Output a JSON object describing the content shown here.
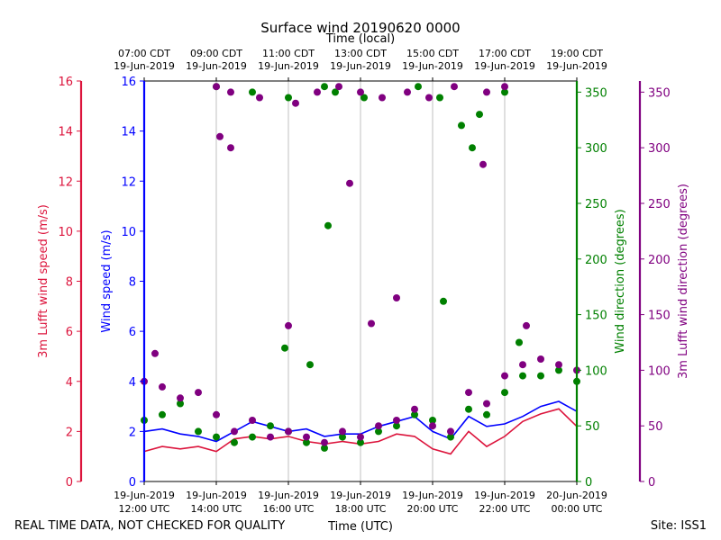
{
  "chart_data": {
    "type": "scatter",
    "title": "Surface wind 20190620 0000",
    "top_axis_label": "Time (local)",
    "xlabel": "Time (UTC)",
    "footer_left": "REAL TIME DATA, NOT CHECKED FOR QUALITY",
    "footer_right": "Site: ISS1",
    "x_range_hours_utc": [
      12,
      24
    ],
    "x_ticks_utc": [
      {
        "hour": 12,
        "line1": "19-Jun-2019",
        "line2": "12:00 UTC"
      },
      {
        "hour": 14,
        "line1": "19-Jun-2019",
        "line2": "14:00 UTC"
      },
      {
        "hour": 16,
        "line1": "19-Jun-2019",
        "line2": "16:00 UTC"
      },
      {
        "hour": 18,
        "line1": "19-Jun-2019",
        "line2": "18:00 UTC"
      },
      {
        "hour": 20,
        "line1": "19-Jun-2019",
        "line2": "20:00 UTC"
      },
      {
        "hour": 22,
        "line1": "19-Jun-2019",
        "line2": "22:00 UTC"
      },
      {
        "hour": 24,
        "line1": "20-Jun-2019",
        "line2": "00:00 UTC"
      }
    ],
    "x_ticks_local": [
      {
        "hour": 12,
        "line1": "07:00 CDT",
        "line2": "19-Jun-2019"
      },
      {
        "hour": 14,
        "line1": "09:00 CDT",
        "line2": "19-Jun-2019"
      },
      {
        "hour": 16,
        "line1": "11:00 CDT",
        "line2": "19-Jun-2019"
      },
      {
        "hour": 18,
        "line1": "13:00 CDT",
        "line2": "19-Jun-2019"
      },
      {
        "hour": 20,
        "line1": "15:00 CDT",
        "line2": "19-Jun-2019"
      },
      {
        "hour": 22,
        "line1": "17:00 CDT",
        "line2": "19-Jun-2019"
      },
      {
        "hour": 24,
        "line1": "19:00 CDT",
        "line2": "19-Jun-2019"
      }
    ],
    "axes": {
      "lufft_speed": {
        "label": "3m Lufft wind speed (m/s)",
        "color": "#dc143c",
        "range": [
          0,
          16
        ],
        "ticks": [
          0,
          2,
          4,
          6,
          8,
          10,
          12,
          14,
          16
        ]
      },
      "wind_speed": {
        "label": "Wind speed (m/s)",
        "color": "#0000ff",
        "range": [
          0,
          16
        ],
        "ticks": [
          0,
          2,
          4,
          6,
          8,
          10,
          12,
          14,
          16
        ]
      },
      "wind_direction": {
        "label": "Wind direction (degrees)",
        "color": "#008000",
        "range": [
          0,
          360
        ],
        "ticks": [
          0,
          50,
          100,
          150,
          200,
          250,
          300,
          350
        ]
      },
      "lufft_direction": {
        "label": "3m Lufft wind direction (degrees)",
        "color": "#800080",
        "range": [
          0,
          360
        ],
        "ticks": [
          0,
          50,
          100,
          150,
          200,
          250,
          300,
          350
        ]
      }
    },
    "grid": "vertical",
    "series": [
      {
        "name": "Wind speed (m/s)",
        "axis": "wind_speed",
        "kind": "line",
        "color": "#0000ff",
        "x": [
          12.0,
          12.5,
          13.0,
          13.5,
          14.0,
          14.5,
          15.0,
          15.5,
          16.0,
          16.5,
          17.0,
          17.5,
          18.0,
          18.5,
          19.0,
          19.5,
          20.0,
          20.5,
          21.0,
          21.5,
          22.0,
          22.5,
          23.0,
          23.5,
          24.0
        ],
        "y": [
          2.0,
          2.1,
          1.9,
          1.8,
          1.6,
          2.0,
          2.4,
          2.2,
          2.0,
          2.1,
          1.8,
          1.9,
          1.9,
          2.2,
          2.4,
          2.6,
          2.0,
          1.7,
          2.6,
          2.2,
          2.3,
          2.6,
          3.0,
          3.2,
          2.8
        ]
      },
      {
        "name": "3m Lufft wind speed (m/s)",
        "axis": "lufft_speed",
        "kind": "line",
        "color": "#dc143c",
        "x": [
          12.0,
          12.5,
          13.0,
          13.5,
          14.0,
          14.5,
          15.0,
          15.5,
          16.0,
          16.5,
          17.0,
          17.5,
          18.0,
          18.5,
          19.0,
          19.5,
          20.0,
          20.5,
          21.0,
          21.5,
          22.0,
          22.5,
          23.0,
          23.5,
          24.0
        ],
        "y": [
          1.2,
          1.4,
          1.3,
          1.4,
          1.2,
          1.7,
          1.8,
          1.7,
          1.8,
          1.6,
          1.5,
          1.6,
          1.5,
          1.6,
          1.9,
          1.8,
          1.3,
          1.1,
          2.0,
          1.4,
          1.8,
          2.4,
          2.7,
          2.9,
          2.2
        ]
      },
      {
        "name": "Wind direction (degrees)",
        "axis": "wind_direction",
        "kind": "scatter",
        "color": "#008000",
        "x": [
          12.0,
          12.5,
          13.0,
          13.5,
          14.0,
          14.5,
          15.0,
          15.5,
          16.0,
          16.5,
          17.0,
          17.5,
          18.0,
          18.5,
          19.0,
          19.5,
          20.0,
          20.5,
          21.0,
          21.5,
          22.0,
          22.5,
          23.0,
          23.5,
          24.0,
          14.0,
          15.0,
          16.0,
          17.0,
          17.3,
          18.1,
          19.6,
          20.2,
          20.8,
          21.1,
          21.3,
          22.0,
          15.9,
          16.6,
          22.4,
          17.1,
          20.3
        ],
        "y": [
          55,
          60,
          70,
          45,
          40,
          35,
          40,
          50,
          45,
          35,
          30,
          40,
          35,
          45,
          50,
          60,
          55,
          40,
          65,
          60,
          80,
          95,
          95,
          100,
          90,
          355,
          350,
          345,
          355,
          350,
          345,
          355,
          345,
          320,
          300,
          330,
          350,
          120,
          105,
          125,
          230,
          162
        ]
      },
      {
        "name": "3m Lufft wind direction (degrees)",
        "axis": "lufft_direction",
        "kind": "scatter",
        "color": "#800080",
        "x": [
          12.0,
          12.5,
          13.0,
          13.5,
          14.0,
          14.5,
          15.0,
          15.5,
          16.0,
          16.5,
          17.0,
          17.5,
          18.0,
          18.5,
          19.0,
          19.5,
          20.0,
          20.5,
          21.0,
          21.5,
          22.0,
          22.5,
          23.0,
          23.5,
          24.0,
          14.0,
          14.4,
          15.2,
          16.2,
          16.8,
          17.4,
          18.0,
          18.6,
          19.3,
          19.9,
          20.6,
          21.5,
          22.0,
          14.1,
          14.4,
          17.7,
          19.0,
          21.4,
          16.0,
          18.3,
          22.6,
          12.3
        ],
        "y": [
          90,
          85,
          75,
          80,
          60,
          45,
          55,
          40,
          45,
          40,
          35,
          45,
          40,
          50,
          55,
          65,
          50,
          45,
          80,
          70,
          95,
          105,
          110,
          105,
          100,
          355,
          350,
          345,
          340,
          350,
          355,
          350,
          345,
          350,
          345,
          355,
          350,
          355,
          310,
          300,
          268,
          165,
          285,
          140,
          142,
          140,
          115
        ]
      }
    ]
  }
}
